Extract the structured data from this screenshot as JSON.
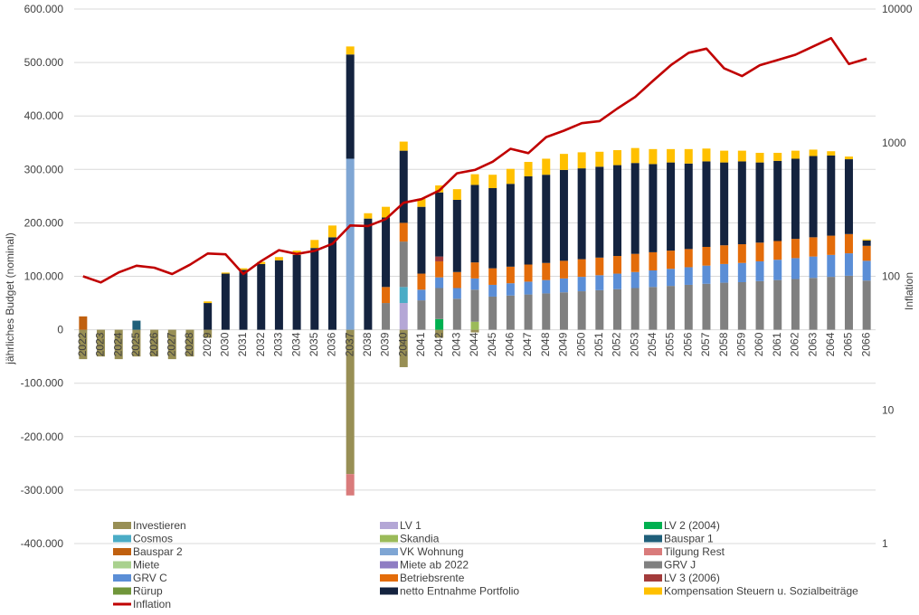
{
  "chart_data": {
    "type": "bar",
    "subtype": "stacked-bar-with-line",
    "categories": [
      "2022",
      "2023",
      "2024",
      "2025",
      "2026",
      "2027",
      "2028",
      "2029",
      "2030",
      "2031",
      "2032",
      "2033",
      "2034",
      "2035",
      "2036",
      "2037",
      "2038",
      "2039",
      "2040",
      "2041",
      "2042",
      "2043",
      "2044",
      "2045",
      "2046",
      "2047",
      "2048",
      "2049",
      "2050",
      "2051",
      "2052",
      "2053",
      "2054",
      "2055",
      "2056",
      "2057",
      "2058",
      "2059",
      "2060",
      "2061",
      "2062",
      "2063",
      "2064",
      "2065",
      "2066"
    ],
    "ylabel": "jährliches Budget (nominal)",
    "y2label": "Inflation",
    "ylim": [
      -400000,
      600000
    ],
    "y2_scale": "log",
    "y2lim": [
      1,
      10000
    ],
    "y_ticks": [
      "600.000",
      "500.000",
      "400.000",
      "300.000",
      "200.000",
      "100.000",
      "0",
      "-100.000",
      "-200.000",
      "-300.000",
      "-400.000"
    ],
    "y2_ticks": [
      "10000",
      "1000",
      "100",
      "10",
      "1"
    ],
    "legend_position": "bottom",
    "grid": true,
    "series": [
      {
        "name": "Investieren",
        "color": "#988F55",
        "values": [
          -55000,
          -50000,
          -55000,
          -50000,
          -50000,
          -55000,
          -50000,
          -15000,
          0,
          0,
          0,
          0,
          0,
          0,
          0,
          -270000,
          0,
          0,
          -70000,
          0,
          -15000,
          0,
          -5000,
          0,
          0,
          0,
          0,
          0,
          0,
          0,
          0,
          0,
          0,
          0,
          0,
          0,
          0,
          0,
          0,
          0,
          0,
          0,
          0,
          0,
          0
        ]
      },
      {
        "name": "LV 1",
        "color": "#B4A7D6",
        "values": [
          0,
          0,
          0,
          0,
          0,
          0,
          0,
          0,
          0,
          0,
          0,
          0,
          0,
          0,
          0,
          0,
          0,
          0,
          50000,
          0,
          0,
          0,
          0,
          0,
          0,
          0,
          0,
          0,
          0,
          0,
          0,
          0,
          0,
          0,
          0,
          0,
          0,
          0,
          0,
          0,
          0,
          0,
          0,
          0,
          0
        ]
      },
      {
        "name": "LV 2 (2004)",
        "color": "#00B050",
        "values": [
          0,
          0,
          0,
          0,
          0,
          0,
          0,
          0,
          0,
          0,
          0,
          0,
          0,
          0,
          0,
          0,
          0,
          0,
          0,
          0,
          20000,
          0,
          0,
          0,
          0,
          0,
          0,
          0,
          0,
          0,
          0,
          0,
          0,
          0,
          0,
          0,
          0,
          0,
          0,
          0,
          0,
          0,
          0,
          0,
          0
        ]
      },
      {
        "name": "Cosmos",
        "color": "#4BACC6",
        "values": [
          0,
          0,
          0,
          0,
          0,
          0,
          0,
          0,
          0,
          0,
          0,
          0,
          0,
          0,
          0,
          0,
          0,
          0,
          30000,
          0,
          0,
          0,
          0,
          0,
          0,
          0,
          0,
          0,
          0,
          0,
          0,
          0,
          0,
          0,
          0,
          0,
          0,
          0,
          0,
          0,
          0,
          0,
          0,
          0,
          0
        ]
      },
      {
        "name": "Skandia",
        "color": "#9BBB59",
        "values": [
          0,
          0,
          0,
          0,
          0,
          0,
          0,
          0,
          0,
          0,
          0,
          0,
          0,
          0,
          0,
          0,
          0,
          0,
          0,
          0,
          0,
          0,
          15000,
          0,
          0,
          0,
          0,
          0,
          0,
          0,
          0,
          0,
          0,
          0,
          0,
          0,
          0,
          0,
          0,
          0,
          0,
          0,
          0,
          0,
          0
        ]
      },
      {
        "name": "Bauspar 1",
        "color": "#1F5F7A",
        "values": [
          0,
          0,
          0,
          17000,
          0,
          0,
          0,
          0,
          0,
          0,
          0,
          0,
          0,
          0,
          0,
          0,
          0,
          0,
          0,
          0,
          0,
          0,
          0,
          0,
          0,
          0,
          0,
          0,
          0,
          0,
          0,
          0,
          0,
          0,
          0,
          0,
          0,
          0,
          0,
          0,
          0,
          0,
          0,
          0,
          0
        ]
      },
      {
        "name": "Bauspar 2",
        "color": "#C0600F",
        "values": [
          25000,
          0,
          0,
          0,
          0,
          0,
          0,
          0,
          0,
          0,
          0,
          0,
          0,
          0,
          0,
          0,
          0,
          0,
          0,
          0,
          0,
          0,
          0,
          0,
          0,
          0,
          0,
          0,
          0,
          0,
          0,
          0,
          0,
          0,
          0,
          0,
          0,
          0,
          0,
          0,
          0,
          0,
          0,
          0,
          0
        ]
      },
      {
        "name": "VK Wohnung",
        "color": "#7FA6D4",
        "values": [
          0,
          0,
          0,
          0,
          0,
          0,
          0,
          0,
          0,
          0,
          0,
          0,
          0,
          0,
          0,
          320000,
          0,
          0,
          0,
          0,
          0,
          0,
          0,
          0,
          0,
          0,
          0,
          0,
          0,
          0,
          0,
          0,
          0,
          0,
          0,
          0,
          0,
          0,
          0,
          0,
          0,
          0,
          0,
          0,
          0
        ]
      },
      {
        "name": "Tilgung Rest",
        "color": "#D97B7B",
        "values": [
          0,
          0,
          0,
          0,
          0,
          0,
          0,
          0,
          0,
          0,
          0,
          0,
          0,
          0,
          0,
          -40000,
          0,
          0,
          0,
          0,
          0,
          0,
          0,
          0,
          0,
          0,
          0,
          0,
          0,
          0,
          0,
          0,
          0,
          0,
          0,
          0,
          0,
          0,
          0,
          0,
          0,
          0,
          0,
          0,
          0
        ]
      },
      {
        "name": "Miete",
        "color": "#A9D18E",
        "values": [
          0,
          0,
          0,
          0,
          0,
          0,
          0,
          0,
          0,
          0,
          0,
          0,
          0,
          0,
          0,
          0,
          0,
          0,
          0,
          0,
          0,
          0,
          0,
          0,
          0,
          0,
          0,
          0,
          0,
          0,
          0,
          0,
          0,
          0,
          0,
          0,
          0,
          0,
          0,
          0,
          0,
          0,
          0,
          0,
          0
        ]
      },
      {
        "name": "Miete ab 2022",
        "color": "#8E7CC3",
        "values": [
          0,
          0,
          0,
          0,
          0,
          0,
          0,
          0,
          0,
          0,
          0,
          0,
          0,
          0,
          0,
          0,
          0,
          0,
          0,
          0,
          0,
          0,
          0,
          0,
          0,
          0,
          0,
          0,
          0,
          0,
          0,
          0,
          0,
          0,
          0,
          0,
          0,
          0,
          0,
          0,
          0,
          0,
          0,
          0,
          0
        ]
      },
      {
        "name": "GRV J",
        "color": "#808080",
        "values": [
          0,
          0,
          0,
          0,
          0,
          0,
          0,
          0,
          0,
          0,
          0,
          0,
          0,
          0,
          0,
          0,
          0,
          50000,
          85000,
          55000,
          58000,
          58000,
          60000,
          62000,
          64000,
          66000,
          68000,
          70000,
          72000,
          74000,
          76000,
          78000,
          80000,
          82000,
          84000,
          86000,
          88000,
          89000,
          91000,
          93000,
          95000,
          97000,
          99000,
          101000,
          92000
        ]
      },
      {
        "name": "GRV C",
        "color": "#5B8ED6",
        "values": [
          0,
          0,
          0,
          0,
          0,
          0,
          0,
          0,
          0,
          0,
          0,
          0,
          0,
          0,
          0,
          0,
          0,
          0,
          0,
          20000,
          20000,
          20000,
          21000,
          22000,
          23000,
          24000,
          25000,
          26000,
          27000,
          28000,
          29000,
          30000,
          31000,
          32000,
          33000,
          34000,
          35000,
          36000,
          37000,
          38000,
          39000,
          40000,
          41000,
          42000,
          37000
        ]
      },
      {
        "name": "Betriebsrente",
        "color": "#E36C0A",
        "values": [
          0,
          0,
          0,
          0,
          0,
          0,
          0,
          0,
          0,
          0,
          0,
          0,
          0,
          0,
          0,
          0,
          0,
          30000,
          35000,
          30000,
          30000,
          30000,
          30000,
          31000,
          31000,
          32000,
          32000,
          33000,
          33000,
          33000,
          33000,
          34000,
          34000,
          34000,
          34000,
          35000,
          35000,
          35000,
          35000,
          35000,
          36000,
          36000,
          36000,
          36000,
          28000
        ]
      },
      {
        "name": "LV 3 (2006)",
        "color": "#A33B3B",
        "values": [
          0,
          0,
          0,
          0,
          0,
          0,
          0,
          0,
          0,
          0,
          0,
          0,
          0,
          0,
          0,
          0,
          0,
          0,
          0,
          0,
          9000,
          0,
          0,
          0,
          0,
          0,
          0,
          0,
          0,
          0,
          0,
          0,
          0,
          0,
          0,
          0,
          0,
          0,
          0,
          0,
          0,
          0,
          0,
          0,
          0
        ]
      },
      {
        "name": "Rürup",
        "color": "#70963A",
        "values": [
          0,
          0,
          0,
          0,
          0,
          0,
          0,
          0,
          0,
          0,
          0,
          0,
          0,
          0,
          0,
          0,
          0,
          0,
          0,
          0,
          0,
          0,
          0,
          0,
          0,
          0,
          0,
          0,
          0,
          0,
          0,
          0,
          0,
          0,
          0,
          0,
          0,
          0,
          0,
          0,
          0,
          0,
          0,
          0,
          0
        ]
      },
      {
        "name": "netto Entnahme Portfolio",
        "color": "#14233F",
        "values": [
          0,
          0,
          0,
          0,
          0,
          0,
          0,
          50000,
          105000,
          112000,
          123000,
          130000,
          140000,
          153000,
          173000,
          195000,
          208000,
          130000,
          135000,
          125000,
          120000,
          135000,
          145000,
          150000,
          155000,
          165000,
          165000,
          170000,
          170000,
          170000,
          170000,
          170000,
          165000,
          165000,
          160000,
          160000,
          155000,
          155000,
          150000,
          150000,
          150000,
          152000,
          150000,
          140000,
          10000
        ]
      },
      {
        "name": "Kompensation Steuern u. Sozialbeiträge",
        "color": "#FFC000",
        "values": [
          0,
          0,
          0,
          0,
          0,
          0,
          0,
          3000,
          2000,
          3000,
          4000,
          6000,
          8000,
          15000,
          22000,
          15000,
          10000,
          20000,
          17000,
          15000,
          13000,
          20000,
          20000,
          25000,
          28000,
          27000,
          30000,
          30000,
          30000,
          28000,
          28000,
          28000,
          28000,
          25000,
          27000,
          24000,
          22000,
          20000,
          18000,
          15000,
          15000,
          12000,
          8000,
          5000,
          2000
        ]
      }
    ],
    "line": {
      "name": "Inflation",
      "color": "#C00000",
      "axis": "secondary",
      "values": [
        100,
        90,
        107,
        120,
        116,
        104,
        122,
        148,
        146,
        104,
        130,
        157,
        147,
        155,
        175,
        240,
        238,
        268,
        355,
        378,
        438,
        590,
        625,
        720,
        900,
        835,
        1100,
        1230,
        1400,
        1450,
        1800,
        2200,
        2900,
        3800,
        4700,
        5050,
        3600,
        3150,
        3800,
        4150,
        4550,
        5250,
        6050,
        3880,
        4250
      ]
    }
  }
}
